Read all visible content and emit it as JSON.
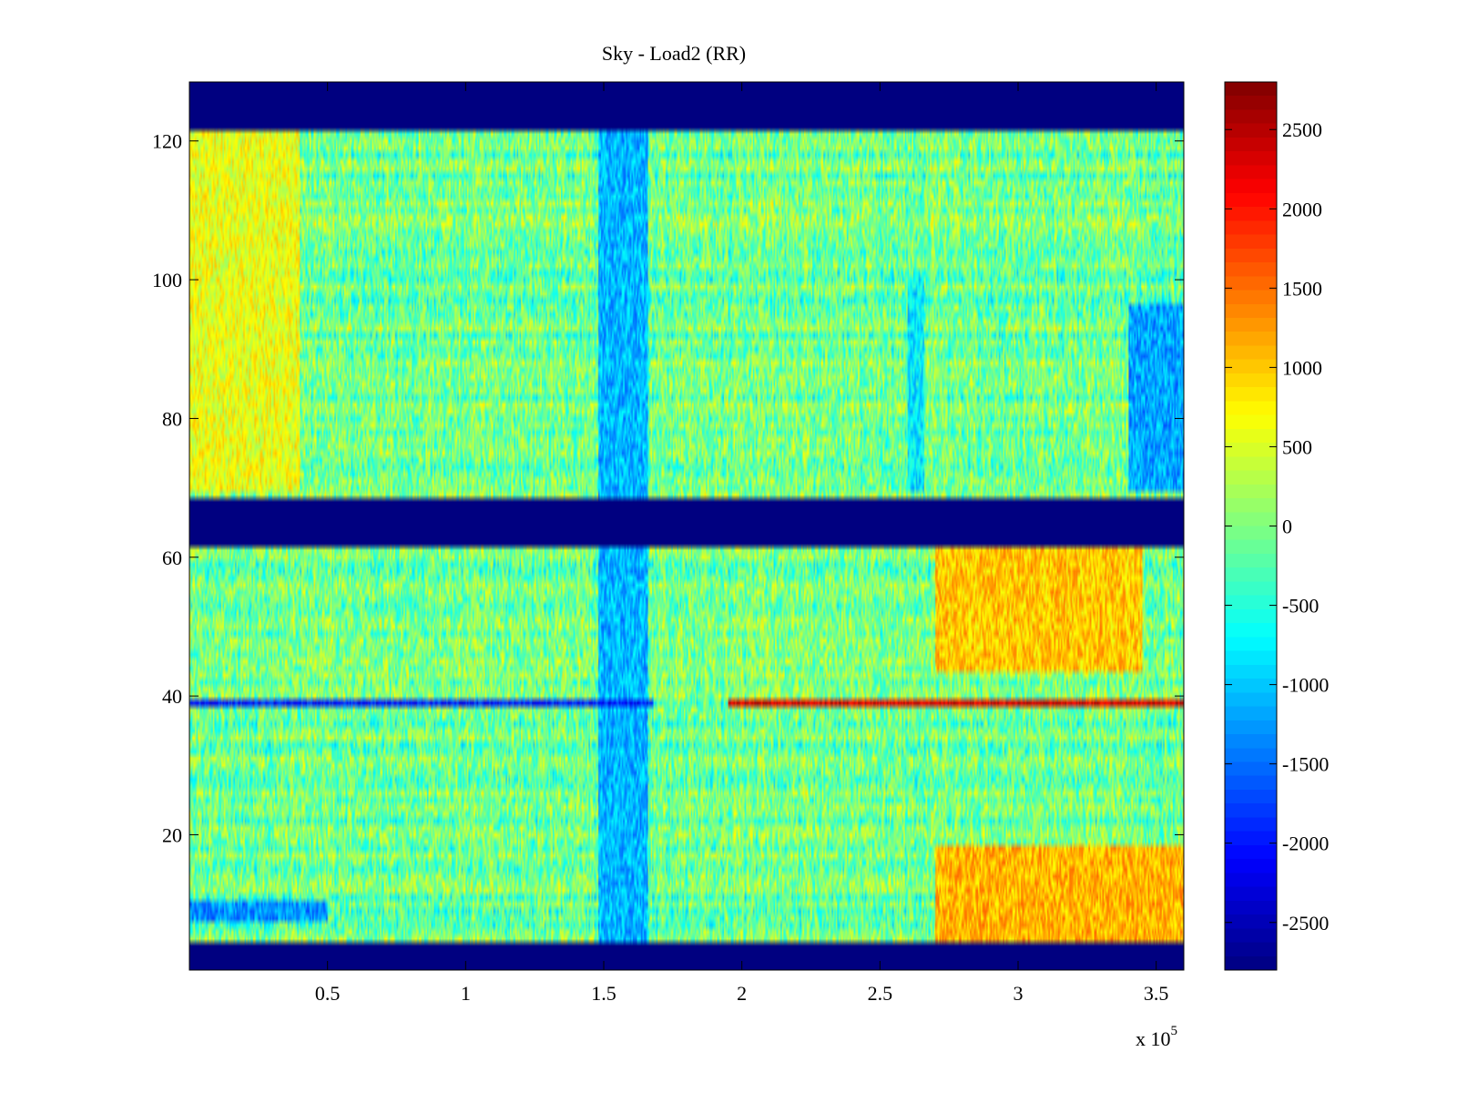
{
  "chart_data": {
    "type": "heatmap",
    "title": "Sky - Load2 (RR)",
    "xlabel": "",
    "ylabel": "",
    "x_exponent_label": "x 10",
    "x_exponent_power": "5",
    "xlim": [
      0,
      3.6
    ],
    "ylim": [
      1,
      128
    ],
    "x_scale_factor": 100000,
    "x_ticks": [
      0.5,
      1,
      1.5,
      2,
      2.5,
      3,
      3.5
    ],
    "x_tick_labels": [
      "0.5",
      "1",
      "1.5",
      "2",
      "2.5",
      "3",
      "3.5"
    ],
    "y_ticks": [
      20,
      40,
      60,
      80,
      100,
      120
    ],
    "y_tick_labels": [
      "20",
      "40",
      "60",
      "80",
      "100",
      "120"
    ],
    "colorbar": {
      "colormap": "jet",
      "clim": [
        -2800,
        2800
      ],
      "ticks": [
        2500,
        2000,
        1500,
        1000,
        500,
        0,
        -500,
        -1000,
        -1500,
        -2000,
        -2500
      ],
      "tick_labels": [
        "2500",
        "2000",
        "1500",
        "1000",
        "500",
        "0",
        "-500",
        "-1000",
        "-1500",
        "-2000",
        "-2500"
      ]
    },
    "masked_row_ranges": [
      [
        1,
        4
      ],
      [
        62,
        68
      ],
      [
        122,
        128
      ]
    ],
    "masked_value": -2800,
    "anomalous_rows": [
      {
        "row": 39,
        "x_start": 0,
        "x_end": 1.68,
        "value": -2000
      },
      {
        "row": 39,
        "x_start": 1.95,
        "x_end": 3.6,
        "value": 2300
      }
    ],
    "regions": [
      {
        "x_start": 1.48,
        "x_end": 1.66,
        "y_start": 5,
        "y_end": 121,
        "value": -1100
      },
      {
        "x_start": 2.6,
        "x_end": 2.66,
        "y_start": 70,
        "y_end": 100,
        "value": -800
      },
      {
        "x_start": 3.4,
        "x_end": 3.6,
        "y_start": 70,
        "y_end": 96,
        "value": -1200
      },
      {
        "x_start": 2.7,
        "x_end": 3.45,
        "y_start": 44,
        "y_end": 61,
        "value": 1000
      },
      {
        "x_start": 2.7,
        "x_end": 3.6,
        "y_start": 5,
        "y_end": 18,
        "value": 1100
      },
      {
        "x_start": 0,
        "x_end": 0.5,
        "y_start": 8,
        "y_end": 10,
        "value": -1300
      },
      {
        "x_start": 0,
        "x_end": 0.4,
        "y_start": 70,
        "y_end": 121,
        "value": 600
      }
    ],
    "background_value_range": [
      -600,
      400
    ],
    "colors": {
      "axes_frame": "#000000",
      "masked": "#00008f",
      "background": "#ffffff"
    }
  }
}
